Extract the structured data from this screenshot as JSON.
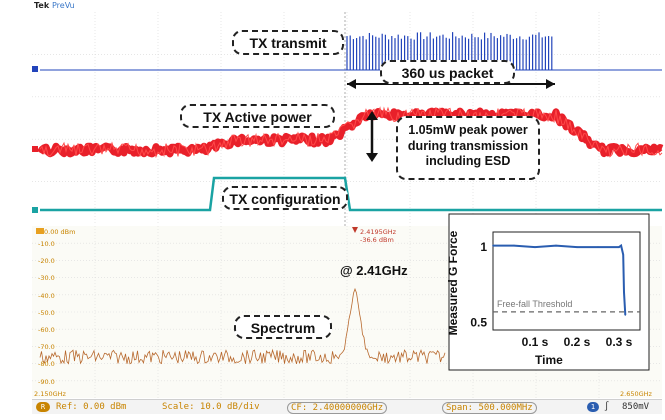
{
  "header": {
    "brand": "Tek",
    "mode": "PreVu"
  },
  "colors": {
    "tx": "#2244bb",
    "power": "#e8202a",
    "config": "#1aa3a3",
    "spectrum": "#b8692e",
    "gforce": "#2a5db0",
    "accent": "#c88400"
  },
  "annotations": {
    "tx_transmit": "TX transmit",
    "packet": "360 us packet",
    "active_power": "TX Active power",
    "peak_power": "1.05mW peak power during transmission including ESD",
    "tx_config": "TX configuration",
    "freq": "@ 2.41GHz",
    "spectrum": "Spectrum"
  },
  "spectrum_axis": {
    "top_label": "0.00 dBm",
    "labels": [
      "-10.0",
      "-20.0",
      "-30.0",
      "-40.0",
      "-50.0",
      "-60.0",
      "-70.0",
      "-80.0",
      "-90.0"
    ],
    "start_freq": "2.150GHz",
    "end_freq": "2.650GHz",
    "marker_freq": "2.4195GHz",
    "marker_level": "-36.6 dBm"
  },
  "status_bar": {
    "ref": "Ref: 0.00 dBm",
    "scale": "Scale: 10.0 dB/div",
    "cf": "CF: 2.40000000GHz",
    "span": "Span: 500.000MHz",
    "trigger_level": "850mV"
  },
  "chart_data": {
    "type": "line",
    "ylabel": "Measured G Force",
    "xlabel": "Time",
    "x_ticks": [
      "0.1 s",
      "0.2 s",
      "0.3 s"
    ],
    "y_ticks": [
      "1",
      "0.5"
    ],
    "threshold_label": "Free-fall Threshold",
    "threshold": 0.57,
    "xlim": [
      0,
      0.35
    ],
    "ylim": [
      0.45,
      1.1
    ],
    "series": [
      {
        "x": [
          0.0,
          0.05,
          0.1,
          0.15,
          0.2,
          0.25,
          0.3,
          0.305,
          0.31,
          0.312,
          0.315
        ],
        "values": [
          1.01,
          1.01,
          1.0,
          1.01,
          1.0,
          1.0,
          1.0,
          1.01,
          0.95,
          0.7,
          0.55
        ]
      }
    ]
  }
}
